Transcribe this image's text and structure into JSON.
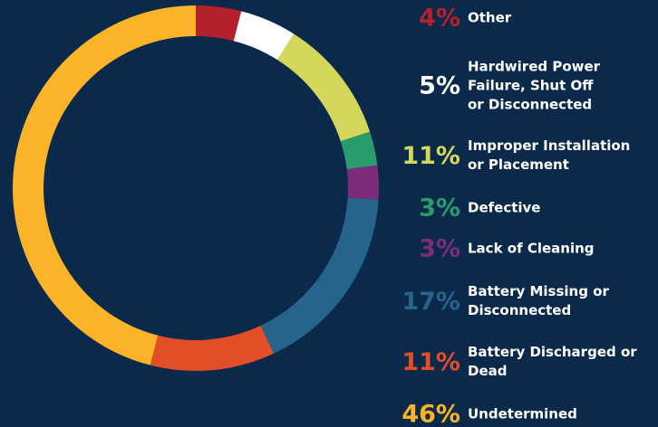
{
  "chart_data": {
    "type": "donut",
    "categories": [
      "Other",
      "Hardwired Power Failure, Shut Off or Disconnected",
      "Improper Installation or Placement",
      "Defective",
      "Lack of Cleaning",
      "Battery Missing or Disconnected",
      "Battery Discharged or Dead",
      "Undetermined"
    ],
    "values": [
      4,
      5,
      11,
      3,
      3,
      17,
      11,
      46
    ],
    "value_labels": [
      "4%",
      "5%",
      "11%",
      "3%",
      "3%",
      "17%",
      "11%",
      "46%"
    ],
    "colors": [
      "#b4212b",
      "#ffffff",
      "#d3d85b",
      "#2a9b6b",
      "#7b2c7a",
      "#27648c",
      "#e24f26",
      "#fbb42a"
    ]
  }
}
